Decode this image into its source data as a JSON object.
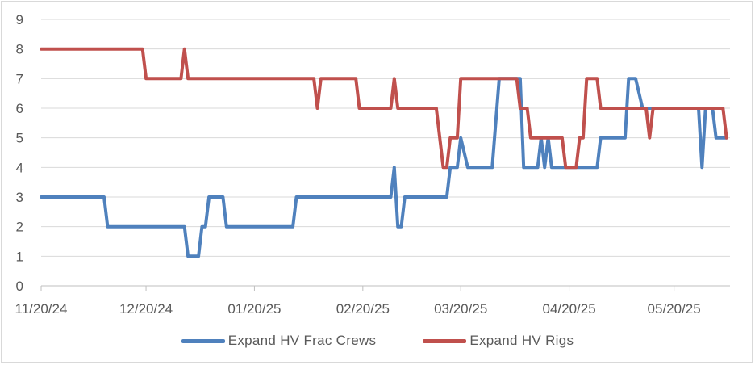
{
  "chart_data": {
    "type": "line",
    "title": "",
    "xlabel": "",
    "ylabel": "",
    "ylim": [
      0,
      9
    ],
    "yticks": [
      0,
      1,
      2,
      3,
      4,
      5,
      6,
      7,
      8,
      9
    ],
    "xlim": [
      "2024-11-20",
      "2025-06-05"
    ],
    "xticks": [
      "11/20/24",
      "12/20/24",
      "01/20/25",
      "02/20/25",
      "03/20/25",
      "04/20/25",
      "05/20/25"
    ],
    "grid": "horizontal",
    "legend": "bottom",
    "series": [
      {
        "name": "Expand HV Frac Crews",
        "color": "#4f81bd",
        "points": [
          [
            "2024-11-20",
            3
          ],
          [
            "2024-12-08",
            3
          ],
          [
            "2024-12-09",
            2
          ],
          [
            "2024-12-24",
            2
          ],
          [
            "2024-12-31",
            2
          ],
          [
            "2025-01-01",
            1
          ],
          [
            "2025-01-04",
            1
          ],
          [
            "2025-01-05",
            2
          ],
          [
            "2025-01-06",
            2
          ],
          [
            "2025-01-07",
            3
          ],
          [
            "2025-01-11",
            3
          ],
          [
            "2025-01-12",
            2
          ],
          [
            "2025-01-31",
            2
          ],
          [
            "2025-02-01",
            3
          ],
          [
            "2025-02-19",
            3
          ],
          [
            "2025-02-28",
            3
          ],
          [
            "2025-03-01",
            4
          ],
          [
            "2025-03-02",
            2
          ],
          [
            "2025-03-03",
            2
          ],
          [
            "2025-03-04",
            3
          ],
          [
            "2025-03-16",
            3
          ],
          [
            "2025-03-17",
            4
          ],
          [
            "2025-03-19",
            4
          ],
          [
            "2025-03-20",
            5
          ],
          [
            "2025-03-22",
            4
          ],
          [
            "2025-03-29",
            4
          ],
          [
            "2025-03-31",
            7
          ],
          [
            "2025-04-06",
            7
          ],
          [
            "2025-04-07",
            4
          ],
          [
            "2025-04-11",
            4
          ],
          [
            "2025-04-12",
            5
          ],
          [
            "2025-04-13",
            4
          ],
          [
            "2025-04-14",
            5
          ],
          [
            "2025-04-15",
            4
          ],
          [
            "2025-04-27",
            4
          ],
          [
            "2025-04-28",
            4
          ],
          [
            "2025-04-29",
            5
          ],
          [
            "2025-05-06",
            5
          ],
          [
            "2025-05-07",
            7
          ],
          [
            "2025-05-09",
            7
          ],
          [
            "2025-05-11",
            6
          ],
          [
            "2025-05-27",
            6
          ],
          [
            "2025-05-28",
            4
          ],
          [
            "2025-05-29",
            6
          ],
          [
            "2025-05-31",
            6
          ],
          [
            "2025-06-01",
            5
          ],
          [
            "2025-06-04",
            5
          ]
        ]
      },
      {
        "name": "Expand HV Rigs",
        "color": "#c0504d",
        "points": [
          [
            "2024-11-20",
            8
          ],
          [
            "2024-12-19",
            8
          ],
          [
            "2024-12-20",
            7
          ],
          [
            "2024-12-30",
            7
          ],
          [
            "2024-12-31",
            8
          ],
          [
            "2025-01-01",
            7
          ],
          [
            "2025-02-06",
            7
          ],
          [
            "2025-02-07",
            6
          ],
          [
            "2025-02-08",
            7
          ],
          [
            "2025-02-18",
            7
          ],
          [
            "2025-02-19",
            6
          ],
          [
            "2025-02-28",
            6
          ],
          [
            "2025-03-01",
            7
          ],
          [
            "2025-03-02",
            6
          ],
          [
            "2025-03-13",
            6
          ],
          [
            "2025-03-15",
            4
          ],
          [
            "2025-03-16",
            4
          ],
          [
            "2025-03-17",
            5
          ],
          [
            "2025-03-19",
            5
          ],
          [
            "2025-03-20",
            7
          ],
          [
            "2025-04-05",
            7
          ],
          [
            "2025-04-06",
            6
          ],
          [
            "2025-04-08",
            6
          ],
          [
            "2025-04-09",
            5
          ],
          [
            "2025-04-18",
            5
          ],
          [
            "2025-04-19",
            4
          ],
          [
            "2025-04-22",
            4
          ],
          [
            "2025-04-23",
            5
          ],
          [
            "2025-04-24",
            5
          ],
          [
            "2025-04-25",
            7
          ],
          [
            "2025-04-28",
            7
          ],
          [
            "2025-04-29",
            6
          ],
          [
            "2025-05-12",
            6
          ],
          [
            "2025-05-13",
            5
          ],
          [
            "2025-05-14",
            6
          ],
          [
            "2025-06-03",
            6
          ],
          [
            "2025-06-04",
            5
          ]
        ]
      }
    ]
  }
}
